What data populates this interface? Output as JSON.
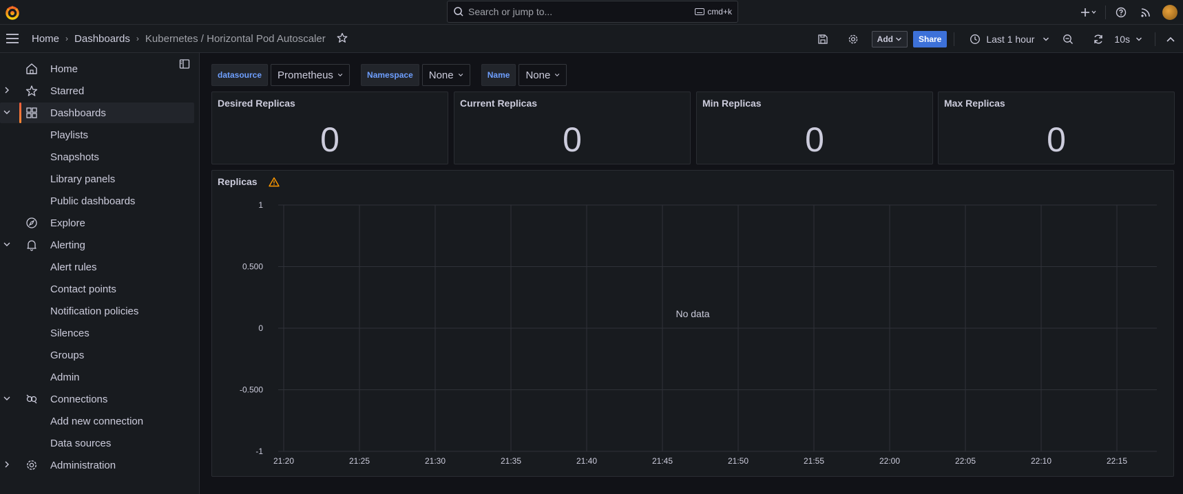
{
  "topbar": {
    "search_placeholder": "Search or jump to...",
    "search_shortcut": "cmd+k"
  },
  "breadcrumbs": [
    "Home",
    "Dashboards",
    "Kubernetes / Horizontal Pod Autoscaler"
  ],
  "toolbar": {
    "add_label": "Add",
    "share_label": "Share",
    "time_range": "Last 1 hour",
    "refresh_interval": "10s"
  },
  "sidebar": {
    "items": [
      {
        "label": "Home",
        "icon": "home-icon",
        "chevron": "",
        "sub": false,
        "active": false
      },
      {
        "label": "Starred",
        "icon": "star-icon",
        "chevron": "right",
        "sub": false,
        "active": false
      },
      {
        "label": "Dashboards",
        "icon": "dashboards-icon",
        "chevron": "down",
        "sub": false,
        "active": true
      },
      {
        "label": "Playlists",
        "sub": true
      },
      {
        "label": "Snapshots",
        "sub": true
      },
      {
        "label": "Library panels",
        "sub": true
      },
      {
        "label": "Public dashboards",
        "sub": true
      },
      {
        "label": "Explore",
        "icon": "compass-icon",
        "chevron": "",
        "sub": false,
        "active": false
      },
      {
        "label": "Alerting",
        "icon": "bell-icon",
        "chevron": "down",
        "sub": false,
        "active": false
      },
      {
        "label": "Alert rules",
        "sub": true
      },
      {
        "label": "Contact points",
        "sub": true
      },
      {
        "label": "Notification policies",
        "sub": true
      },
      {
        "label": "Silences",
        "sub": true
      },
      {
        "label": "Groups",
        "sub": true
      },
      {
        "label": "Admin",
        "sub": true
      },
      {
        "label": "Connections",
        "icon": "connections-icon",
        "chevron": "down",
        "sub": false,
        "active": false
      },
      {
        "label": "Add new connection",
        "sub": true
      },
      {
        "label": "Data sources",
        "sub": true
      },
      {
        "label": "Administration",
        "icon": "gear-icon",
        "chevron": "right",
        "sub": false,
        "active": false
      }
    ]
  },
  "variables": [
    {
      "label": "datasource",
      "value": "Prometheus"
    },
    {
      "label": "Namespace",
      "value": "None"
    },
    {
      "label": "Name",
      "value": "None"
    }
  ],
  "stats": [
    {
      "title": "Desired Replicas",
      "value": "0"
    },
    {
      "title": "Current Replicas",
      "value": "0"
    },
    {
      "title": "Min Replicas",
      "value": "0"
    },
    {
      "title": "Max Replicas",
      "value": "0"
    }
  ],
  "replicas_panel": {
    "title": "Replicas",
    "no_data": "No data"
  },
  "chart_data": {
    "type": "line",
    "series": [],
    "y_ticks": [
      "1",
      "0.500",
      "0",
      "-0.500",
      "-1"
    ],
    "ylim": [
      -1,
      1
    ],
    "x_ticks": [
      "21:20",
      "21:25",
      "21:30",
      "21:35",
      "21:40",
      "21:45",
      "21:50",
      "21:55",
      "22:00",
      "22:05",
      "22:10",
      "22:15"
    ],
    "grid": true
  }
}
